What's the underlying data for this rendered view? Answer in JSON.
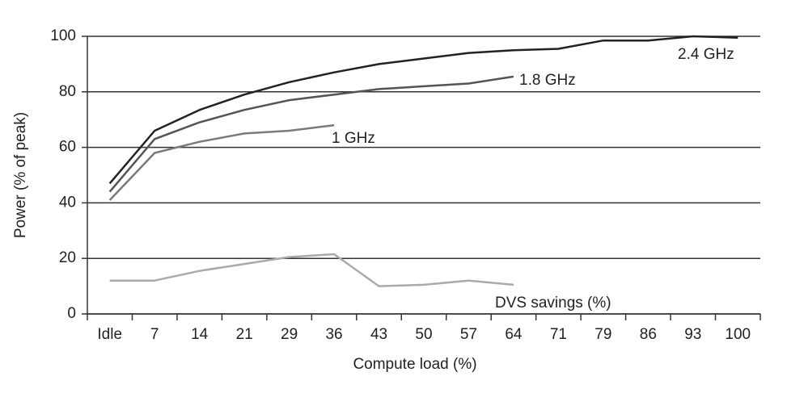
{
  "chart_data": {
    "type": "line",
    "x_label": "Compute load (%)",
    "y_label": "Power (% of peak)",
    "categories": [
      "Idle",
      "7",
      "14",
      "21",
      "29",
      "36",
      "43",
      "50",
      "57",
      "64",
      "71",
      "79",
      "86",
      "93",
      "100"
    ],
    "series": [
      {
        "name": "2.4 GHz",
        "color": "#222222",
        "values": [
          47,
          66,
          73.5,
          79,
          83.5,
          87,
          90,
          92,
          94,
          95,
          95.5,
          98.5,
          98.5,
          100,
          99.5
        ]
      },
      {
        "name": "1.8 GHz",
        "color": "#555555",
        "values": [
          44,
          63,
          69,
          73.5,
          77,
          79,
          81,
          82,
          83,
          85.5,
          null,
          null,
          null,
          null,
          null
        ]
      },
      {
        "name": "1 GHz",
        "color": "#7a7a7a",
        "values": [
          41,
          58,
          62,
          65,
          66,
          68,
          null,
          null,
          null,
          null,
          null,
          null,
          null,
          null,
          null
        ]
      },
      {
        "name": "DVS savings (%)",
        "color": "#aaaaaa",
        "values": [
          12,
          12,
          15.5,
          18,
          20.5,
          21.5,
          10,
          10.5,
          12,
          10.5,
          null,
          null,
          null,
          null,
          null
        ]
      }
    ],
    "ylim": [
      0,
      100
    ],
    "yticks": [
      0,
      20,
      40,
      60,
      80,
      100
    ],
    "grid": true
  }
}
